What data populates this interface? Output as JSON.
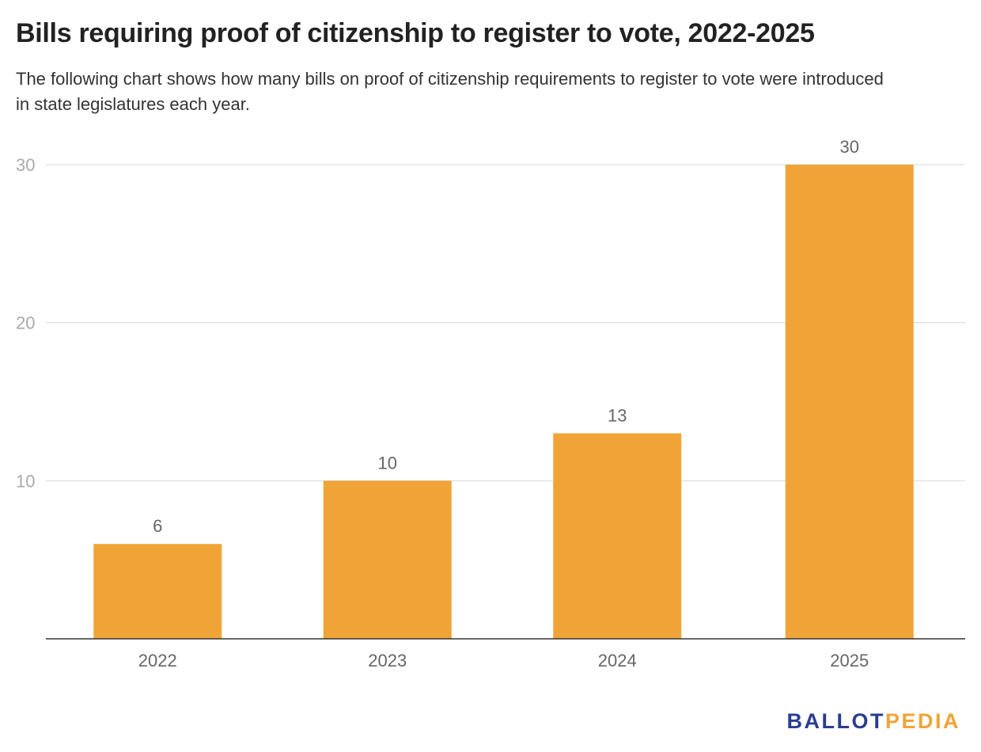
{
  "chart_data": {
    "type": "bar",
    "title": "Bills requiring proof of citizenship to register to vote, 2022-2025",
    "subtitle": "The following chart shows how many bills on proof of citizenship requirements to register to vote were introduced in state legislatures each year.",
    "categories": [
      "2022",
      "2023",
      "2024",
      "2025"
    ],
    "values": [
      6,
      10,
      13,
      30
    ],
    "data_labels": [
      "6",
      "10",
      "13",
      "30"
    ],
    "xlabel": "",
    "ylabel": "",
    "ylim": [
      0,
      30
    ],
    "yticks": [
      10,
      20,
      30
    ],
    "ytick_labels": [
      "10",
      "20",
      "30"
    ],
    "grid": true,
    "legend": "none",
    "bar_color": "#f0a437"
  },
  "branding": {
    "logo_part1": "BALLOT",
    "logo_part2": "PEDIA",
    "logo_color_primary": "#2a3d8f",
    "logo_color_accent": "#f0a437"
  }
}
